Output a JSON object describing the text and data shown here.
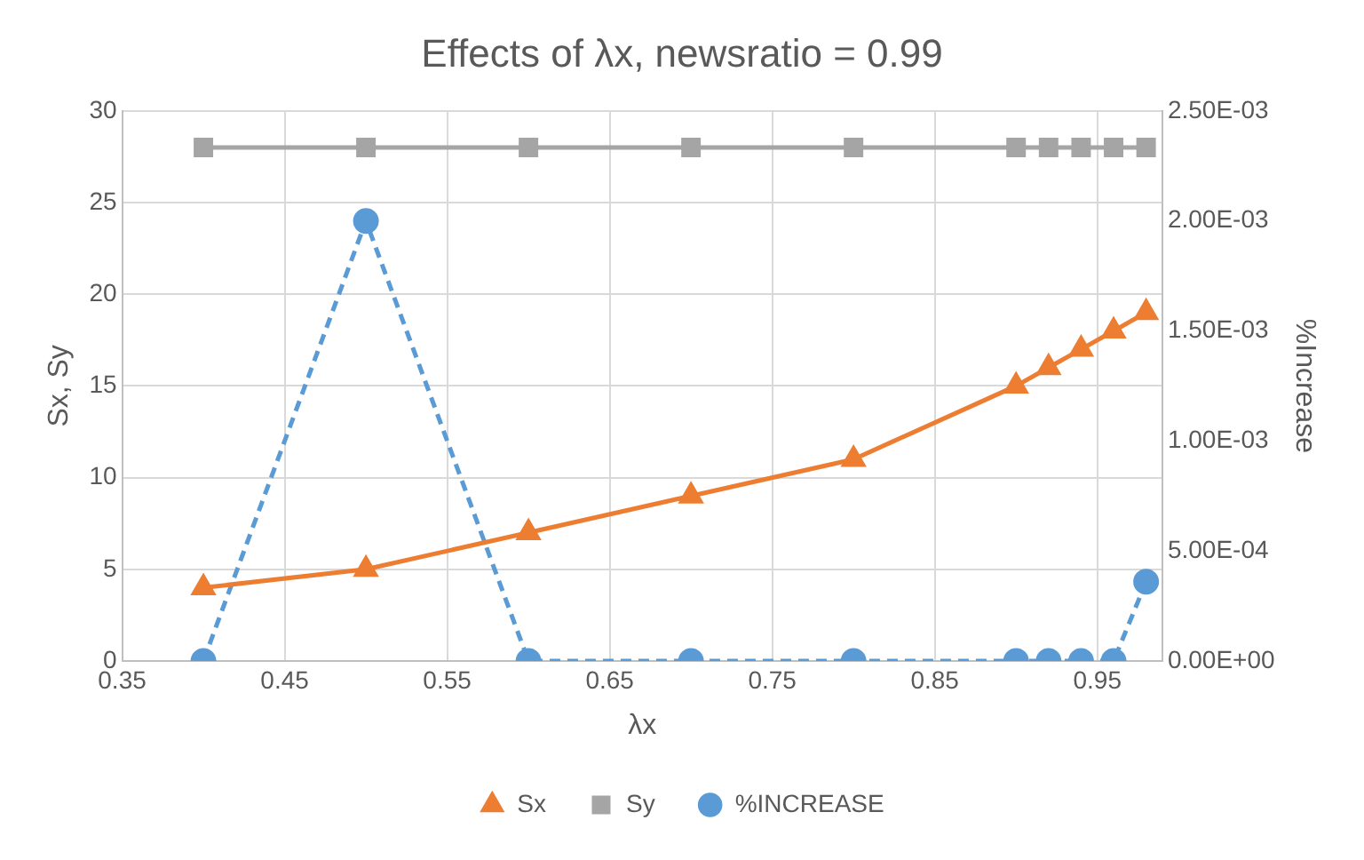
{
  "chart_data": {
    "type": "line",
    "title": "Effects of λx, newsratio = 0.99",
    "xlabel": "λx",
    "ylabel": "Sx, Sy",
    "y2label": "%Increase",
    "x": [
      0.4,
      0.5,
      0.6,
      0.7,
      0.8,
      0.9,
      0.92,
      0.94,
      0.96,
      0.98
    ],
    "xlim": [
      0.35,
      0.99
    ],
    "xticks": [
      0.35,
      0.45,
      0.55,
      0.65,
      0.75,
      0.85,
      0.95
    ],
    "ylim": [
      0,
      30
    ],
    "yticks": [
      0,
      5,
      10,
      15,
      20,
      25,
      30
    ],
    "y2lim": [
      0,
      0.0025
    ],
    "y2ticks": [
      {
        "value": 0,
        "label": "0.00E+00"
      },
      {
        "value": 0.0005,
        "label": "5.00E-04"
      },
      {
        "value": 0.001,
        "label": "1.00E-03"
      },
      {
        "value": 0.0015,
        "label": "1.50E-03"
      },
      {
        "value": 0.002,
        "label": "2.00E-03"
      },
      {
        "value": 0.0025,
        "label": "2.50E-03"
      }
    ],
    "grid": true,
    "legend": "bottom",
    "series": [
      {
        "name": "Sx",
        "color": "#ed7d31",
        "marker": "triangle",
        "line_style": "solid",
        "values": [
          4,
          5,
          7,
          9,
          11,
          15,
          16,
          17,
          18,
          19
        ]
      },
      {
        "name": "Sy",
        "color": "#a5a5a5",
        "marker": "square",
        "line_style": "solid",
        "values": [
          28,
          28,
          28,
          28,
          28,
          28,
          28,
          28,
          28,
          28
        ]
      },
      {
        "name": "%INCREASE",
        "color": "#5b9bd5",
        "marker": "circle",
        "line_style": "dashed",
        "axis": "y2",
        "values": [
          0,
          0.002,
          0,
          0,
          0,
          0,
          0,
          0,
          0,
          0.00036
        ]
      }
    ]
  }
}
